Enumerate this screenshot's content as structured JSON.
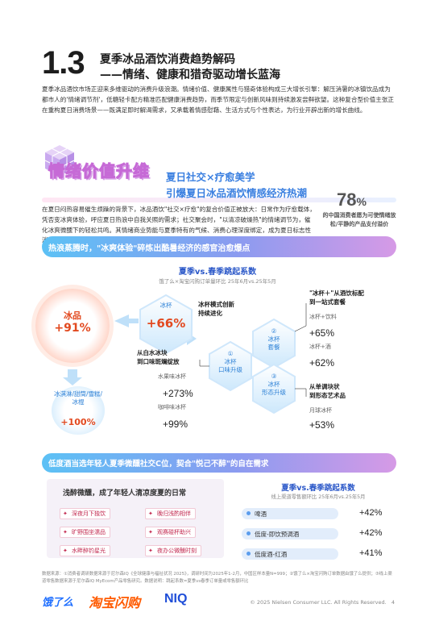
{
  "header": {
    "section_number": "1.3",
    "title_line1": "夏季冰品酒饮消费趋势解码",
    "title_line2": "——情绪、健康和猎奇驱动增长蓝海",
    "intro": "夏季冰品酒饮市场正迎来多维驱动的消费升级浪潮。情绪价值、健康属性与猎奇体验构成三大增长引擎：解压消暑的冰镇饮品成为都市人的'情绪调节剂'，低糖轻卡配方精准匹配健康消费趋势，而季节限定与创新风味则持续激发尝鲜欲望。这种复合型价值主张正在重构夏日消费场景——既满足即时解渴需求，又承载着情感慰藉、生活方式与个性表达，为行业开辟出新的增长曲线。"
  },
  "emotion": {
    "title": "情绪价值升维",
    "subtitle1": "夏日社交×疗愈美学",
    "subtitle2": "引爆夏日冰品酒饮情感经济热潮",
    "paragraph": "在夏日闷热容易催生烦躁的背景下，冰品酒饮\"社交×疗愈\"的复合价值正被放大：日常作为疗愈载体，凭否变冰爽体验，呼应夏日热浪中自我关照的需求；社交聚会时，\"以清凉破燥热\"的情绪调节为，催化冰爽微醺下的轻松共鸣。其情绪商业势能与夏季特有的气候、消费心理深度绑定，成为夏日标志性消费符号。",
    "stat_value": "78",
    "stat_unit": "%",
    "stat_desc": "的中国消费者愿为可使情绪放松/平静的产品支付溢价"
  },
  "banner1": "热浪蒸腾时，\"冰爽体验\"碎炼出酷暑经济的感官治愈爆点",
  "chart": {
    "title": "夏季vs.春季跳起系数",
    "note": "饿了么×淘宝闪购订单量环比 25年6月vs.25年5月",
    "main_label": "冰品",
    "main_value": "+91%",
    "hex_ice": "冰杯",
    "hex_ice_value": "+66%",
    "ice_desc1": "冰杯模式创新",
    "ice_desc2": "持续进化",
    "step1_label1": "①",
    "step1_label2": "冰杯",
    "step1_label3": "口味升级",
    "step2_label1": "②",
    "step2_label2": "冰杯",
    "step2_label3": "套餐",
    "step3_label1": "③",
    "step3_label2": "冰杯",
    "step3_label3": "形态升级",
    "flavor_title1": "从白水冰块",
    "flavor_title2": "到口味斑斓绽放",
    "flavor_item1": "水果味冰杯",
    "flavor_val1": "+273%",
    "flavor_item2": "咖啡味冰杯",
    "flavor_val2": "+99%",
    "combo_title1": "\"冰杯＋\"从酒饮标配",
    "combo_title2": "到一站式套餐",
    "combo_item1": "冰杯+饮料",
    "combo_val1": "+65%",
    "combo_item2": "冰杯+酒",
    "combo_val2": "+62%",
    "form_title1": "从单调块状",
    "form_title2": "到形态艺术品",
    "form_item1": "月球冰杯",
    "form_val1": "+53%",
    "icecream_label": "冰淇淋/甜筒/雪糕/冰棍",
    "icecream_value": "+100%"
  },
  "banner2": "低度酒当选年轻人夏季微醺社交C位，契合\"悦己不醉\"的自在需求",
  "left_panel": {
    "title": "浅醉微醺，成了年轻人清凉度夏的日常",
    "chips": [
      "深夜月下独饮",
      "晚归浅酌相伴",
      "旷野围坐濡品",
      "观赛碰杯助兴",
      "水畔醉钓星光",
      "夜办公微醺时刻"
    ]
  },
  "right_panel": {
    "title": "夏季vs.春季跳起系数",
    "note": "线上渠道零售额环比 25年6月vs.25年5月",
    "rows": [
      {
        "label": "啤酒",
        "value": "+42%"
      },
      {
        "label": "低度-即饮预调酒",
        "value": "+42%"
      },
      {
        "label": "低度酒-红酒",
        "value": "+41%"
      }
    ]
  },
  "footnote": "数据来源：①消费者调研数据来源于尼尔森IQ《全球健康与福祉状况 2025》，调研时间为2025年1-2月，中国区样本量N=999；②饿了么×淘宝闪购订单数据由饿了么提供；③线上渠道零售数据来源于尼尔森IQ MyEcom产品零售研究。数据说明：跳起系数=夏季vs春季订单量或零售额环比",
  "footer": {
    "logo1": "饿了么",
    "logo2": "淘宝闪购",
    "logo3": "NIQ",
    "copyright": "© 2025 Nielsen Consumer LLC. All Rights Reserved.",
    "page": "4"
  },
  "colors": {
    "accent_blue": "#2a57c8",
    "accent_orange": "#e2491f",
    "accent_pink": "#c66ad6"
  }
}
